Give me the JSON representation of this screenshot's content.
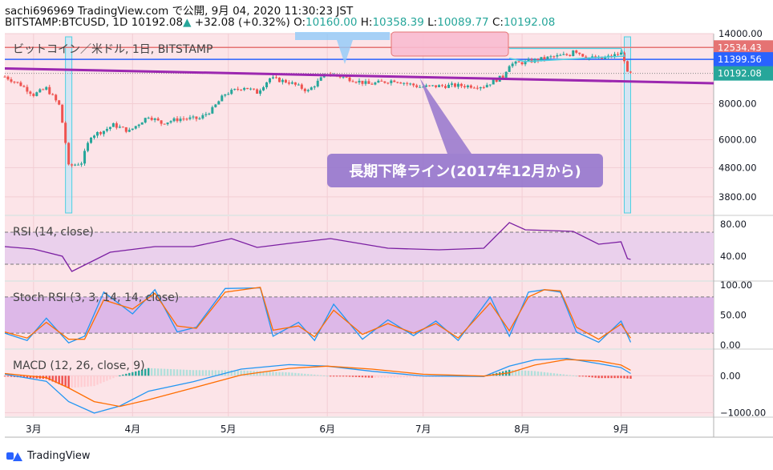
{
  "header": {
    "line1": "sachi696969 TradingView.com で公開, 9月 04, 2020 11:30:23 JST",
    "symbol": "BITSTAMP:BTCUSD, 1D",
    "price": "10192.08",
    "change": "+32.08 (+0.32%)",
    "o_label": "O:",
    "o": "10160.00",
    "h_label": "H:",
    "h": "10358.39",
    "l_label": "L:",
    "l": "10089.77",
    "c_label": "C:",
    "c": "10192.08"
  },
  "colors": {
    "pane_bg": "#fce4e8",
    "band": "#ead0ec",
    "stoch_band": "#ddb8e8",
    "up": "#26a69a",
    "down": "#ef5350",
    "rsi": "#7b1fa2",
    "trend": "#9c27b0",
    "blue_line": "#2962ff",
    "red_line": "#e57373",
    "callout": "#9575cd",
    "macd": "#2196f3",
    "signal": "#ff6d00",
    "cyan": "#4dd0e1"
  },
  "chart_data": [
    {
      "type": "candlestick",
      "title": "ビットコイン／米ドル, 1日, BITSTAMP",
      "scale": "log",
      "ylim": [
        3300,
        14000
      ],
      "yticks": [
        "14000.00",
        "8000.00",
        "6000.00",
        "4800.00",
        "3800.00"
      ],
      "ytick_values": [
        14000,
        8000,
        6000,
        4800,
        3800
      ],
      "xticks": [
        "3月",
        "4月",
        "5月",
        "6月",
        "7月",
        "8月",
        "9月"
      ],
      "x_range": [
        "2020-02-21",
        "2020-09-30"
      ],
      "xtick_dates": [
        "2020-03-01",
        "2020-04-01",
        "2020-05-01",
        "2020-06-01",
        "2020-07-01",
        "2020-08-01",
        "2020-09-01"
      ],
      "horizontal_levels": [
        {
          "value": 12534.43,
          "label": "12534.43",
          "color": "#e57373"
        },
        {
          "value": 11399.56,
          "label": "11399.56",
          "color": "#2962ff"
        },
        {
          "value": 10192.08,
          "label": "10192.08",
          "color": "#26a69a"
        }
      ],
      "trendline": {
        "from": [
          "2020-02-21",
          10600
        ],
        "to": [
          "2020-09-30",
          9420
        ]
      },
      "annotation": "長期下降ライン(2017年12月から)",
      "highlight_dates": [
        "2020-03-12",
        "2020-09-03"
      ],
      "close_series": [
        [
          "2020-02-21",
          9930
        ],
        [
          "2020-02-26",
          9300
        ],
        [
          "2020-03-01",
          8600
        ],
        [
          "2020-03-05",
          9050
        ],
        [
          "2020-03-09",
          7900
        ],
        [
          "2020-03-12",
          4850
        ],
        [
          "2020-03-16",
          5000
        ],
        [
          "2020-03-19",
          6200
        ],
        [
          "2020-03-23",
          6450
        ],
        [
          "2020-03-26",
          6750
        ],
        [
          "2020-03-31",
          6420
        ],
        [
          "2020-04-06",
          7250
        ],
        [
          "2020-04-10",
          6850
        ],
        [
          "2020-04-16",
          7100
        ],
        [
          "2020-04-22",
          7100
        ],
        [
          "2020-04-26",
          7650
        ],
        [
          "2020-04-30",
          8650
        ],
        [
          "2020-05-06",
          9150
        ],
        [
          "2020-05-10",
          8750
        ],
        [
          "2020-05-14",
          9800
        ],
        [
          "2020-05-20",
          9500
        ],
        [
          "2020-05-26",
          8850
        ],
        [
          "2020-06-01",
          10200
        ],
        [
          "2020-06-08",
          9750
        ],
        [
          "2020-06-14",
          9350
        ],
        [
          "2020-06-22",
          9650
        ],
        [
          "2020-06-30",
          9150
        ],
        [
          "2020-07-10",
          9250
        ],
        [
          "2020-07-20",
          9200
        ],
        [
          "2020-07-26",
          9950
        ],
        [
          "2020-07-28",
          10950
        ],
        [
          "2020-08-02",
          11150
        ],
        [
          "2020-08-10",
          11600
        ],
        [
          "2020-08-16",
          11850
        ],
        [
          "2020-08-17",
          12350
        ],
        [
          "2020-08-21",
          11600
        ],
        [
          "2020-08-26",
          11450
        ],
        [
          "2020-09-01",
          11950
        ],
        [
          "2020-09-02",
          11400
        ],
        [
          "2020-09-03",
          10160
        ],
        [
          "2020-09-04",
          10192
        ]
      ]
    },
    {
      "type": "line",
      "title": "RSI (14, close)",
      "ylim": [
        10,
        90
      ],
      "yticks": [
        "80.00",
        "40.00"
      ],
      "ytick_values": [
        80,
        40
      ],
      "band": [
        30,
        70
      ],
      "series": [
        {
          "name": "RSI",
          "x": [
            "2020-02-21",
            "2020-03-01",
            "2020-03-10",
            "2020-03-13",
            "2020-03-25",
            "2020-04-08",
            "2020-04-20",
            "2020-05-02",
            "2020-05-10",
            "2020-05-20",
            "2020-06-02",
            "2020-06-20",
            "2020-07-06",
            "2020-07-20",
            "2020-07-28",
            "2020-08-02",
            "2020-08-10",
            "2020-08-17",
            "2020-08-25",
            "2020-09-01",
            "2020-09-03",
            "2020-09-04"
          ],
          "values": [
            52,
            49,
            40,
            21,
            45,
            52,
            52,
            62,
            51,
            56,
            62,
            50,
            48,
            50,
            82,
            73,
            72,
            71,
            55,
            58,
            37,
            36
          ]
        }
      ]
    },
    {
      "type": "line",
      "title": "Stoch RSI (3, 3, 14, 14, close)",
      "ylim": [
        -5,
        105
      ],
      "yticks": [
        "100.00",
        "50.00",
        "0.00"
      ],
      "ytick_values": [
        100,
        50,
        0
      ],
      "band": [
        20,
        80
      ],
      "series": [
        {
          "name": "K",
          "x": [
            "2020-02-21",
            "2020-02-28",
            "2020-03-05",
            "2020-03-12",
            "2020-03-17",
            "2020-03-23",
            "2020-04-01",
            "2020-04-08",
            "2020-04-15",
            "2020-04-21",
            "2020-04-30",
            "2020-05-11",
            "2020-05-15",
            "2020-05-23",
            "2020-05-28",
            "2020-06-03",
            "2020-06-12",
            "2020-06-20",
            "2020-06-28",
            "2020-07-05",
            "2020-07-12",
            "2020-07-22",
            "2020-07-28",
            "2020-08-03",
            "2020-08-08",
            "2020-08-13",
            "2020-08-18",
            "2020-08-25",
            "2020-09-01",
            "2020-09-04"
          ],
          "values": [
            20,
            8,
            45,
            4,
            15,
            88,
            52,
            92,
            22,
            30,
            94,
            95,
            15,
            38,
            8,
            68,
            10,
            42,
            16,
            40,
            8,
            80,
            15,
            88,
            92,
            88,
            22,
            5,
            40,
            5
          ]
        },
        {
          "name": "D",
          "x": [
            "2020-02-21",
            "2020-02-28",
            "2020-03-05",
            "2020-03-12",
            "2020-03-17",
            "2020-03-23",
            "2020-04-01",
            "2020-04-08",
            "2020-04-15",
            "2020-04-21",
            "2020-04-30",
            "2020-05-11",
            "2020-05-15",
            "2020-05-23",
            "2020-05-28",
            "2020-06-03",
            "2020-06-12",
            "2020-06-20",
            "2020-06-28",
            "2020-07-05",
            "2020-07-12",
            "2020-07-22",
            "2020-07-28",
            "2020-08-03",
            "2020-08-08",
            "2020-08-13",
            "2020-08-18",
            "2020-08-25",
            "2020-09-01",
            "2020-09-04"
          ],
          "values": [
            22,
            12,
            38,
            10,
            10,
            75,
            60,
            86,
            32,
            28,
            88,
            96,
            25,
            32,
            14,
            58,
            18,
            36,
            20,
            36,
            12,
            70,
            24,
            80,
            92,
            90,
            30,
            10,
            35,
            12
          ]
        }
      ]
    },
    {
      "type": "bar+line",
      "title": "MACD (12, 26, close, 9)",
      "ylim": [
        -1100,
        700
      ],
      "yticks": [
        "0.00",
        "−1000.00"
      ],
      "ytick_values": [
        0,
        -1000
      ],
      "series": [
        {
          "name": "MACD",
          "x": [
            "2020-02-21",
            "2020-03-05",
            "2020-03-12",
            "2020-03-20",
            "2020-03-28",
            "2020-04-06",
            "2020-04-20",
            "2020-05-05",
            "2020-05-20",
            "2020-06-01",
            "2020-06-15",
            "2020-07-01",
            "2020-07-20",
            "2020-07-28",
            "2020-08-05",
            "2020-08-15",
            "2020-08-25",
            "2020-09-01",
            "2020-09-04"
          ],
          "values": [
            40,
            -150,
            -700,
            -1010,
            -820,
            -420,
            -160,
            180,
            300,
            260,
            120,
            -5,
            -20,
            260,
            430,
            470,
            330,
            220,
            60
          ]
        },
        {
          "name": "Signal",
          "x": [
            "2020-02-21",
            "2020-03-05",
            "2020-03-12",
            "2020-03-20",
            "2020-03-28",
            "2020-04-06",
            "2020-04-20",
            "2020-05-05",
            "2020-05-20",
            "2020-06-01",
            "2020-06-15",
            "2020-07-01",
            "2020-07-20",
            "2020-07-28",
            "2020-08-05",
            "2020-08-15",
            "2020-08-25",
            "2020-09-01",
            "2020-09-04"
          ],
          "values": [
            60,
            -50,
            -330,
            -700,
            -830,
            -650,
            -330,
            20,
            200,
            260,
            180,
            40,
            -10,
            80,
            290,
            440,
            400,
            290,
            150
          ]
        }
      ]
    }
  ],
  "footer": {
    "brand": "TradingView"
  }
}
